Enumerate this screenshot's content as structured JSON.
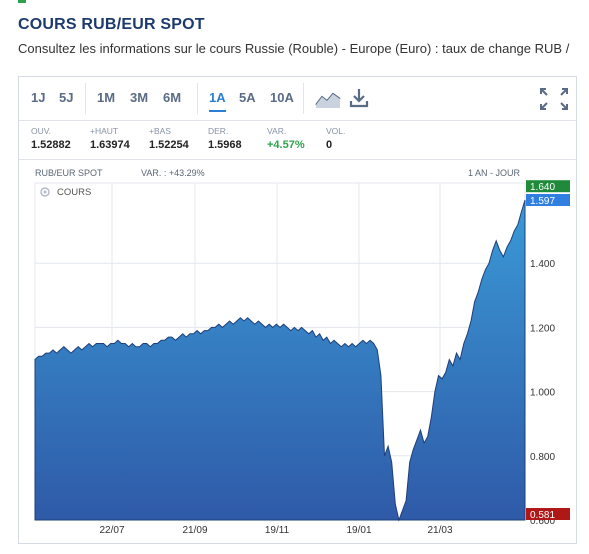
{
  "page": {
    "title": "COURS RUB/EUR SPOT",
    "subtitle": "Consultez les informations sur le cours Russie (Rouble) - Europe (Euro) : taux de change RUB /"
  },
  "toolbar": {
    "periods": [
      "1J",
      "5J",
      "1M",
      "3M",
      "6M",
      "1A",
      "5A",
      "10A"
    ],
    "active_period": "1A",
    "icons": [
      "chart-type-icon",
      "download-icon",
      "fullscreen-icon"
    ]
  },
  "stats": [
    {
      "label": "OUV.",
      "value": "1.52882"
    },
    {
      "label": "+HAUT",
      "value": "1.63974"
    },
    {
      "label": "+BAS",
      "value": "1.52254"
    },
    {
      "label": "DER.",
      "value": "1.5968"
    },
    {
      "label": "VAR.",
      "value": "+4.57%"
    },
    {
      "label": "VOL.",
      "value": "0"
    }
  ],
  "chart_header": {
    "instrument": "RUB/EUR SPOT",
    "variation": "VAR. : +43.29%",
    "period": "1 AN - JOUR"
  },
  "chart_data": {
    "type": "area",
    "legend": [
      "COURS"
    ],
    "x_ticks": [
      "22/07",
      "21/09",
      "19/11",
      "19/01",
      "21/03"
    ],
    "y_ticks": [
      "0.600",
      "0.800",
      "1.000",
      "1.200",
      "1.400"
    ],
    "ylim": [
      0.6,
      1.65
    ],
    "grid": true,
    "max_marker": "1.640",
    "last_marker": "1.597",
    "min_marker": "0.581",
    "colors": {
      "fill_top": "#3a9ad6",
      "fill_bottom": "#2f5aa8",
      "line": "#1e3f7a",
      "max": "#1f8a3a",
      "last": "#2f7fe0",
      "min": "#b01818"
    },
    "values": [
      1.1,
      1.11,
      1.11,
      1.12,
      1.12,
      1.13,
      1.12,
      1.13,
      1.14,
      1.13,
      1.12,
      1.13,
      1.14,
      1.13,
      1.14,
      1.15,
      1.14,
      1.15,
      1.15,
      1.15,
      1.14,
      1.15,
      1.15,
      1.16,
      1.15,
      1.15,
      1.14,
      1.15,
      1.14,
      1.14,
      1.15,
      1.15,
      1.14,
      1.15,
      1.15,
      1.16,
      1.16,
      1.17,
      1.17,
      1.16,
      1.17,
      1.18,
      1.17,
      1.18,
      1.18,
      1.19,
      1.18,
      1.19,
      1.19,
      1.2,
      1.2,
      1.21,
      1.2,
      1.21,
      1.22,
      1.21,
      1.22,
      1.23,
      1.22,
      1.23,
      1.22,
      1.21,
      1.22,
      1.21,
      1.2,
      1.21,
      1.2,
      1.21,
      1.2,
      1.21,
      1.2,
      1.19,
      1.2,
      1.19,
      1.2,
      1.19,
      1.18,
      1.19,
      1.17,
      1.18,
      1.16,
      1.17,
      1.15,
      1.16,
      1.15,
      1.14,
      1.15,
      1.14,
      1.15,
      1.14,
      1.15,
      1.16,
      1.15,
      1.16,
      1.15,
      1.13,
      1.05,
      0.8,
      0.83,
      0.78,
      0.65,
      0.6,
      0.63,
      0.66,
      0.78,
      0.82,
      0.85,
      0.88,
      0.84,
      0.86,
      0.92,
      1.0,
      1.05,
      1.04,
      1.06,
      1.1,
      1.08,
      1.12,
      1.1,
      1.15,
      1.18,
      1.22,
      1.28,
      1.31,
      1.35,
      1.38,
      1.4,
      1.44,
      1.47,
      1.44,
      1.42,
      1.45,
      1.47,
      1.5,
      1.52,
      1.56,
      1.597
    ]
  }
}
